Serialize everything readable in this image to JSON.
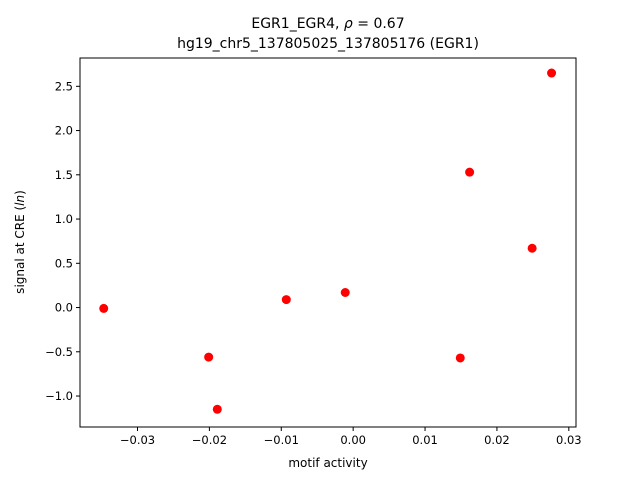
{
  "chart_data": {
    "type": "scatter",
    "title_line1": "EGR1_EGR4, ρ = 0.67",
    "title_line2": "hg19_chr5_137805025_137805176 (EGR1)",
    "xlabel": "motif activity",
    "ylabel": "signal at CRE (ln)",
    "xlim": [
      -0.038,
      0.031
    ],
    "ylim": [
      -1.35,
      2.82
    ],
    "grid": false,
    "marker_color": "#ff0000",
    "xticks": [
      {
        "value": -0.03,
        "label": "−0.03"
      },
      {
        "value": -0.02,
        "label": "−0.02"
      },
      {
        "value": -0.01,
        "label": "−0.01"
      },
      {
        "value": 0.0,
        "label": "0.00"
      },
      {
        "value": 0.01,
        "label": "0.01"
      },
      {
        "value": 0.02,
        "label": "0.02"
      },
      {
        "value": 0.03,
        "label": "0.03"
      }
    ],
    "yticks": [
      {
        "value": -1.0,
        "label": "−1.0"
      },
      {
        "value": -0.5,
        "label": "−0.5"
      },
      {
        "value": 0.0,
        "label": "0.0"
      },
      {
        "value": 0.5,
        "label": "0.5"
      },
      {
        "value": 1.0,
        "label": "1.0"
      },
      {
        "value": 1.5,
        "label": "1.5"
      },
      {
        "value": 2.0,
        "label": "2.0"
      },
      {
        "value": 2.5,
        "label": "2.5"
      }
    ],
    "points": [
      {
        "x": -0.0347,
        "y": -0.01
      },
      {
        "x": -0.0201,
        "y": -0.56
      },
      {
        "x": -0.0189,
        "y": -1.15
      },
      {
        "x": -0.0093,
        "y": 0.09
      },
      {
        "x": -0.0011,
        "y": 0.17
      },
      {
        "x": 0.0149,
        "y": -0.57
      },
      {
        "x": 0.0162,
        "y": 1.53
      },
      {
        "x": 0.0249,
        "y": 0.67
      },
      {
        "x": 0.0276,
        "y": 2.65
      }
    ]
  }
}
